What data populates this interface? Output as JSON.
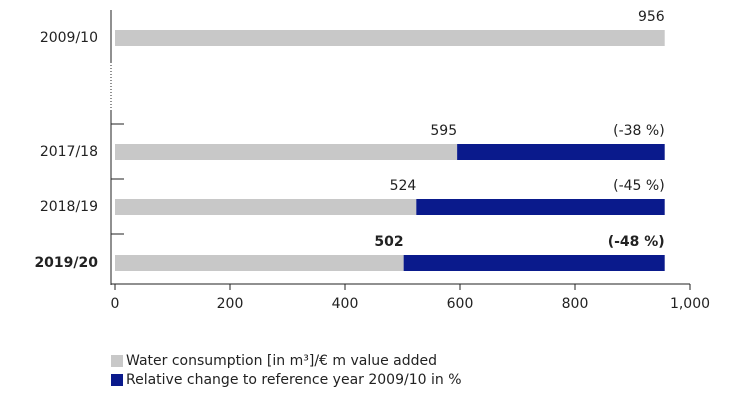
{
  "chart_data": {
    "type": "stacked_barh",
    "categories": [
      "2009/10",
      "2017/18",
      "2018/19",
      "2019/20"
    ],
    "series": [
      {
        "name": "Water consumption [in m³]/€ m value added",
        "color": "#c8c8c8",
        "values": [
          956,
          595,
          524,
          502
        ]
      },
      {
        "name": "Relative change to reference year 2009/10 in %",
        "color": "#0a1a8c",
        "values": [
          null,
          361,
          432,
          454
        ]
      }
    ],
    "annotations": [
      null,
      "(-38 %)",
      "(-45 %)",
      "(-48 %)"
    ],
    "xlim": [
      0,
      1000
    ],
    "xticks": [
      0,
      200,
      400,
      600,
      800,
      {
        "value": 1000,
        "label": "1,000"
      }
    ],
    "legend": "bottom-left"
  }
}
